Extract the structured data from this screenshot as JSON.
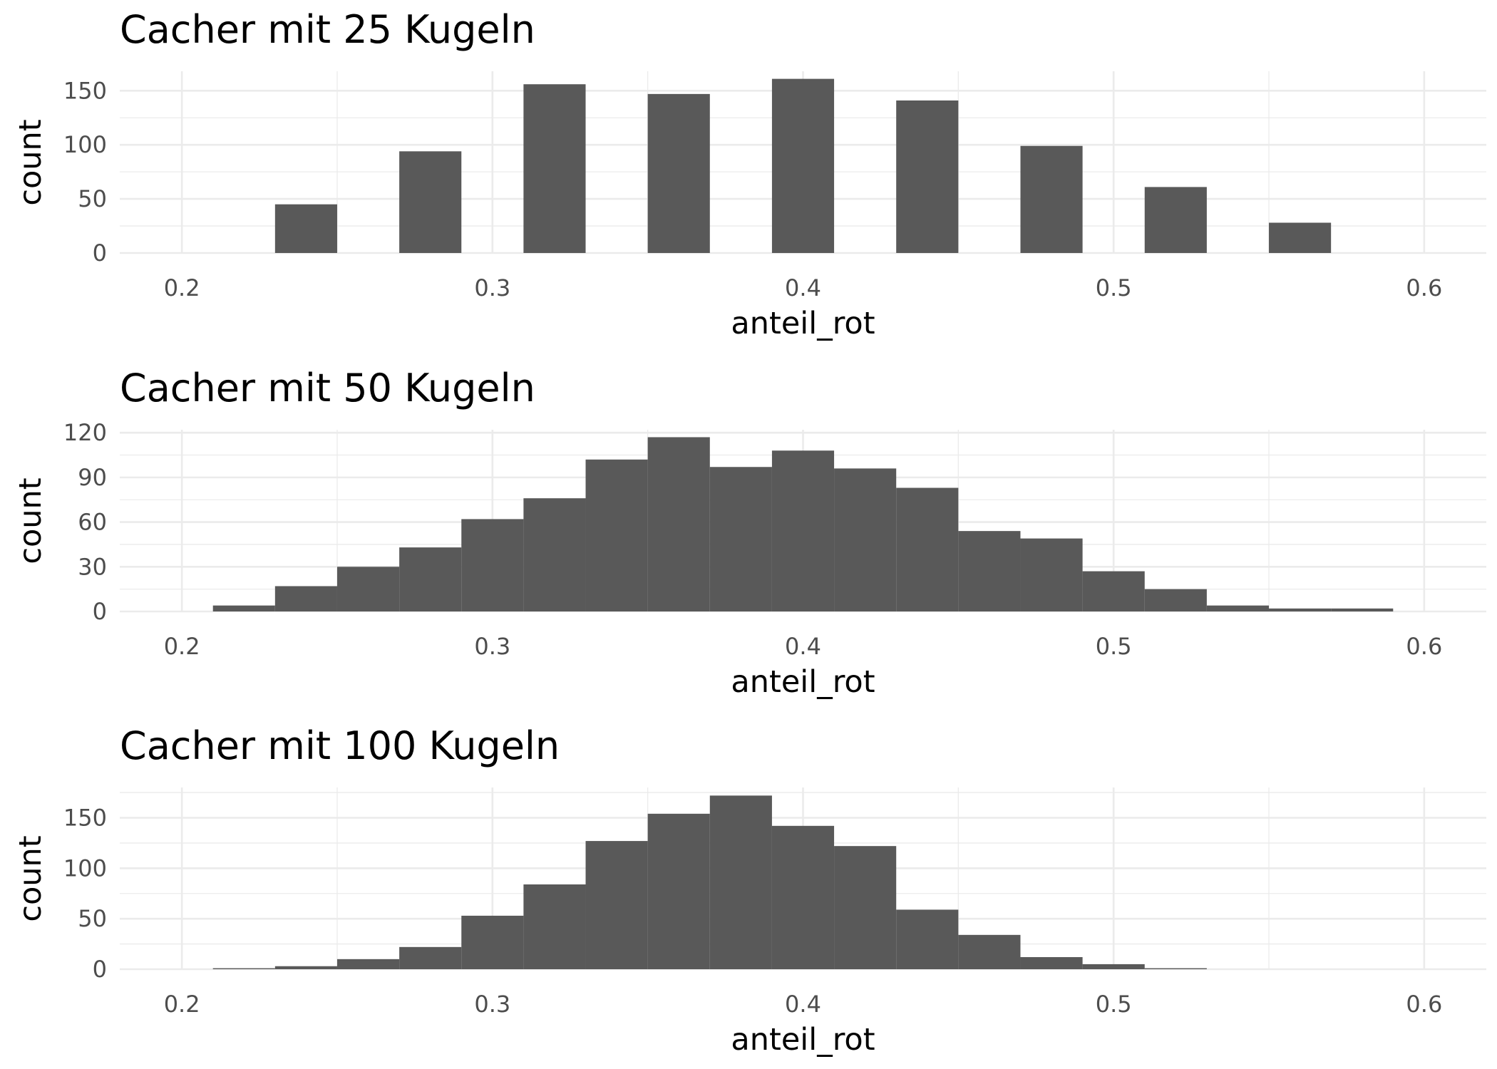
{
  "chart_data": [
    {
      "type": "bar",
      "title": "Cacher mit 25 Kugeln",
      "xlabel": "anteil_rot",
      "ylabel": "count",
      "x": [
        0.24,
        0.28,
        0.32,
        0.36,
        0.4,
        0.44,
        0.48,
        0.52,
        0.56
      ],
      "values": [
        45,
        94,
        156,
        147,
        161,
        141,
        99,
        61,
        28
      ],
      "bin_width": 0.02,
      "xlim": [
        0.18,
        0.62
      ],
      "ylim": [
        0,
        168
      ],
      "x_ticks": [
        "0.2",
        "0.3",
        "0.4",
        "0.5",
        "0.6"
      ],
      "y_ticks": [
        "0",
        "50",
        "100",
        "150"
      ],
      "bar_color": "#595959",
      "grid": true
    },
    {
      "type": "bar",
      "title": "Cacher mit 50 Kugeln",
      "xlabel": "anteil_rot",
      "ylabel": "count",
      "x": [
        0.22,
        0.24,
        0.26,
        0.28,
        0.3,
        0.32,
        0.34,
        0.36,
        0.38,
        0.4,
        0.42,
        0.44,
        0.46,
        0.48,
        0.5,
        0.52,
        0.54,
        0.56,
        0.58
      ],
      "values": [
        4,
        17,
        30,
        43,
        62,
        76,
        102,
        117,
        97,
        108,
        96,
        83,
        54,
        49,
        27,
        15,
        4,
        2,
        2
      ],
      "bin_width": 0.02,
      "xlim": [
        0.18,
        0.62
      ],
      "ylim": [
        0,
        122
      ],
      "x_ticks": [
        "0.2",
        "0.3",
        "0.4",
        "0.5",
        "0.6"
      ],
      "y_ticks": [
        "0",
        "30",
        "60",
        "90",
        "120"
      ],
      "bar_color": "#595959",
      "grid": true
    },
    {
      "type": "bar",
      "title": "Cacher mit 100 Kugeln",
      "xlabel": "anteil_rot",
      "ylabel": "count",
      "x": [
        0.22,
        0.24,
        0.26,
        0.28,
        0.3,
        0.32,
        0.34,
        0.36,
        0.38,
        0.4,
        0.42,
        0.44,
        0.46,
        0.48,
        0.5,
        0.52
      ],
      "values": [
        1,
        3,
        10,
        22,
        53,
        84,
        127,
        154,
        172,
        142,
        122,
        59,
        34,
        12,
        5,
        1
      ],
      "bin_width": 0.02,
      "xlim": [
        0.18,
        0.62
      ],
      "ylim": [
        0,
        180
      ],
      "x_ticks": [
        "0.2",
        "0.3",
        "0.4",
        "0.5",
        "0.6"
      ],
      "y_ticks": [
        "0",
        "50",
        "100",
        "150"
      ],
      "bar_color": "#595959",
      "grid": true
    }
  ]
}
